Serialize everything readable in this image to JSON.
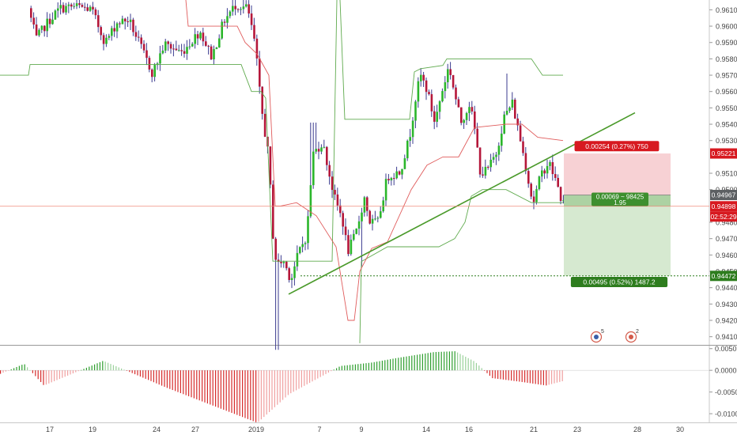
{
  "chart_data": [
    {
      "type": "candlestick",
      "title": "",
      "ylim": [
        0.9405,
        0.9616
      ],
      "y_ticks": [
        "0.96100",
        "0.96000",
        "0.95900",
        "0.95800",
        "0.95700",
        "0.95600",
        "0.95500",
        "0.95400",
        "0.95300",
        "0.95100",
        "0.95000",
        "0.94800",
        "0.94700",
        "0.94600",
        "0.94500",
        "0.94400",
        "0.94300",
        "0.94200",
        "0.94100"
      ],
      "x_ticks": [
        "17",
        "19",
        "24",
        "27",
        "2019",
        "7",
        "9",
        "14",
        "16",
        "21",
        "23",
        "28",
        "30"
      ],
      "colors": {
        "up": "#2bb62b",
        "down": "#b5173a",
        "wick": "#3b3b8f",
        "channel_upper": "#e05c5c",
        "channel_lower": "#5faa4d",
        "trendline": "#4a9a2a",
        "position_target": "#cfe5c8",
        "position_stop": "#f6c9cc"
      },
      "trendline": {
        "start": {
          "x": "Jan 3",
          "y": 0.9436
        },
        "end": {
          "x": "Jan 26",
          "y": 0.9547
        }
      },
      "position": {
        "entry": 0.94967,
        "stop": 0.95221,
        "target": 0.94472,
        "stop_label": "0.00254 (0.27%) 750",
        "entry_label_line1": "0.00069 ~ 98425",
        "entry_label_line2": "1.95",
        "target_label": "0.00495 (0.52%) 1487.2"
      },
      "price_badges": [
        {
          "value": "0.95221",
          "color": "#d71920"
        },
        {
          "value": "0.94967",
          "color": "#5d6063"
        },
        {
          "value": "0.94898",
          "color": "#d71920"
        },
        {
          "value": "02:52:29",
          "color": "#d71920"
        },
        {
          "value": "0.94472",
          "color": "#2e7d1e"
        }
      ],
      "current_price": 0.94898,
      "event_badges": [
        {
          "count": "5"
        },
        {
          "count": "2"
        }
      ]
    },
    {
      "type": "bar",
      "title": "",
      "ylim": [
        -0.012,
        0.0055
      ],
      "y_ticks": [
        "0.0050",
        "0.0000",
        "-0.0050",
        "-0.0100"
      ],
      "bar_colors": {
        "positive_up": "#2e9e2e",
        "positive_down": "#9bd19b",
        "negative_down": "#d62b2b",
        "negative_up": "#f0a0a0"
      },
      "values": [
        -0.0008,
        0.0015,
        -0.0035,
        0.0022,
        -0.004,
        -0.0121,
        -0.0055,
        -0.0025,
        0.001,
        0.0018,
        0.0028,
        0.0042,
        0.0044,
        0.002,
        -0.0018,
        -0.0027,
        -0.0035,
        -0.0024
      ]
    }
  ]
}
